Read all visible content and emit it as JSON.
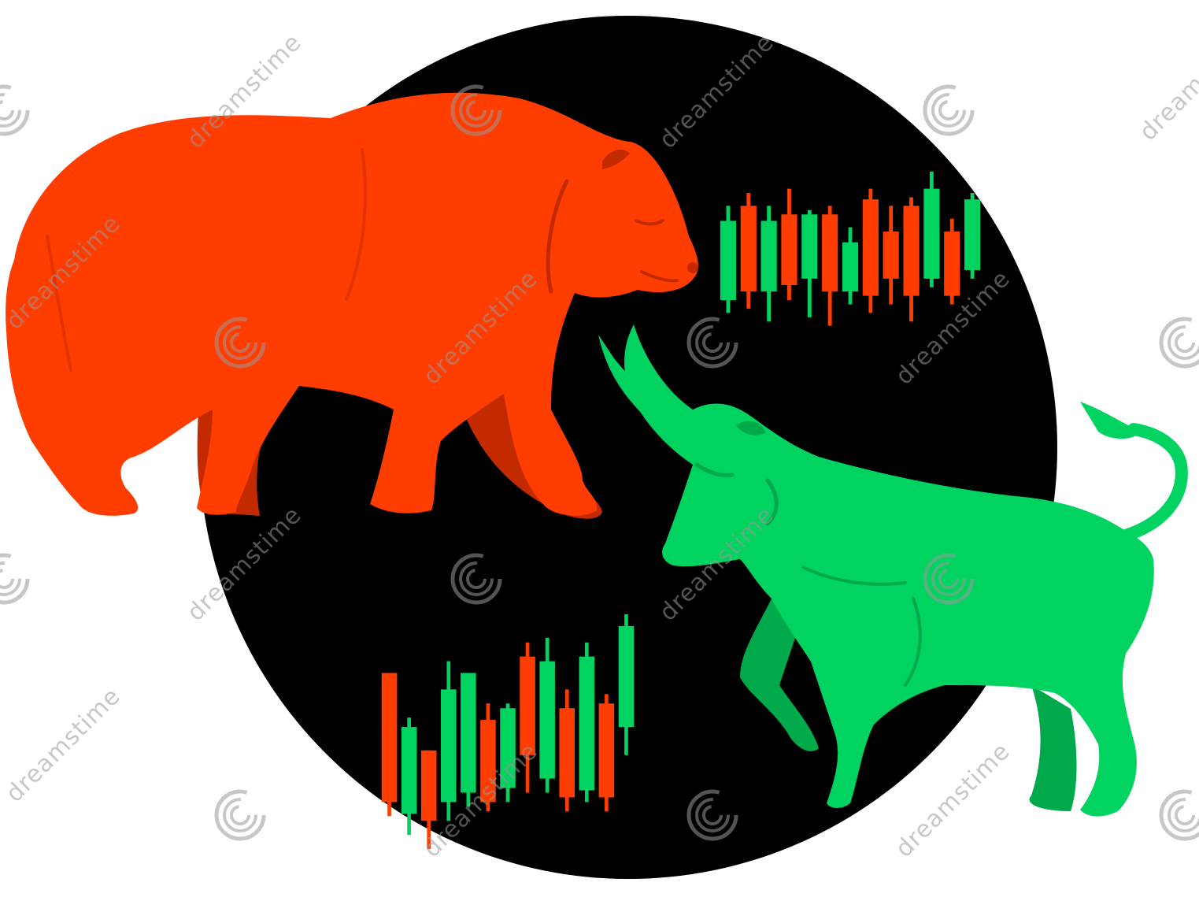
{
  "illustration": {
    "subjects": [
      "bear-silhouette",
      "bull-silhouette",
      "candlestick-chart-upper",
      "candlestick-chart-lower"
    ],
    "colors": {
      "background": "#ffffff",
      "circle": "#000000",
      "bear": "#ff3d00",
      "bear_shadow": "#c42a00",
      "bull": "#00d35f",
      "bull_shadow": "#00a94a",
      "candle_red": "#ff3d00",
      "candle_green": "#00d35f"
    }
  },
  "watermark": {
    "text": "dreamstime",
    "icon": "spiral-logo-icon"
  },
  "candles_upper": [
    {
      "color": "green",
      "open": 18,
      "close": 55,
      "low": 12,
      "high": 62
    },
    {
      "color": "red",
      "open": 62,
      "close": 22,
      "low": 14,
      "high": 68
    },
    {
      "color": "green",
      "open": 22,
      "close": 55,
      "low": 8,
      "high": 62
    },
    {
      "color": "red",
      "open": 58,
      "close": 25,
      "low": 18,
      "high": 70
    },
    {
      "color": "green",
      "open": 28,
      "close": 58,
      "low": 10,
      "high": 60
    },
    {
      "color": "red",
      "open": 58,
      "close": 22,
      "low": 6,
      "high": 62
    },
    {
      "color": "green",
      "open": 22,
      "close": 45,
      "low": 16,
      "high": 52
    },
    {
      "color": "red",
      "open": 65,
      "close": 20,
      "low": 12,
      "high": 70
    },
    {
      "color": "red",
      "open": 50,
      "close": 28,
      "low": 16,
      "high": 62
    },
    {
      "color": "red",
      "open": 62,
      "close": 20,
      "low": 8,
      "high": 66
    },
    {
      "color": "green",
      "open": 28,
      "close": 70,
      "low": 24,
      "high": 78
    },
    {
      "color": "red",
      "open": 50,
      "close": 20,
      "low": 16,
      "high": 56
    },
    {
      "color": "green",
      "open": 32,
      "close": 65,
      "low": 28,
      "high": 68
    }
  ],
  "candles_lower": [
    {
      "color": "red",
      "open": 75,
      "close": 20,
      "low": 14,
      "high": 75
    },
    {
      "color": "green",
      "open": 15,
      "close": 52,
      "low": 6,
      "high": 56
    },
    {
      "color": "red",
      "open": 42,
      "close": 12,
      "low": 0,
      "high": 42
    },
    {
      "color": "green",
      "open": 20,
      "close": 68,
      "low": 12,
      "high": 80
    },
    {
      "color": "green",
      "open": 24,
      "close": 75,
      "low": 18,
      "high": 75
    },
    {
      "color": "red",
      "open": 55,
      "close": 20,
      "low": 16,
      "high": 62
    },
    {
      "color": "green",
      "open": 26,
      "close": 60,
      "low": 20,
      "high": 62
    },
    {
      "color": "red",
      "open": 82,
      "close": 40,
      "low": 24,
      "high": 88
    },
    {
      "color": "green",
      "open": 30,
      "close": 80,
      "low": 24,
      "high": 90
    },
    {
      "color": "red",
      "open": 60,
      "close": 22,
      "low": 16,
      "high": 68
    },
    {
      "color": "green",
      "open": 25,
      "close": 82,
      "low": 20,
      "high": 88
    },
    {
      "color": "red",
      "open": 62,
      "close": 22,
      "low": 16,
      "high": 66
    },
    {
      "color": "green",
      "open": 52,
      "close": 95,
      "low": 40,
      "high": 100
    }
  ]
}
